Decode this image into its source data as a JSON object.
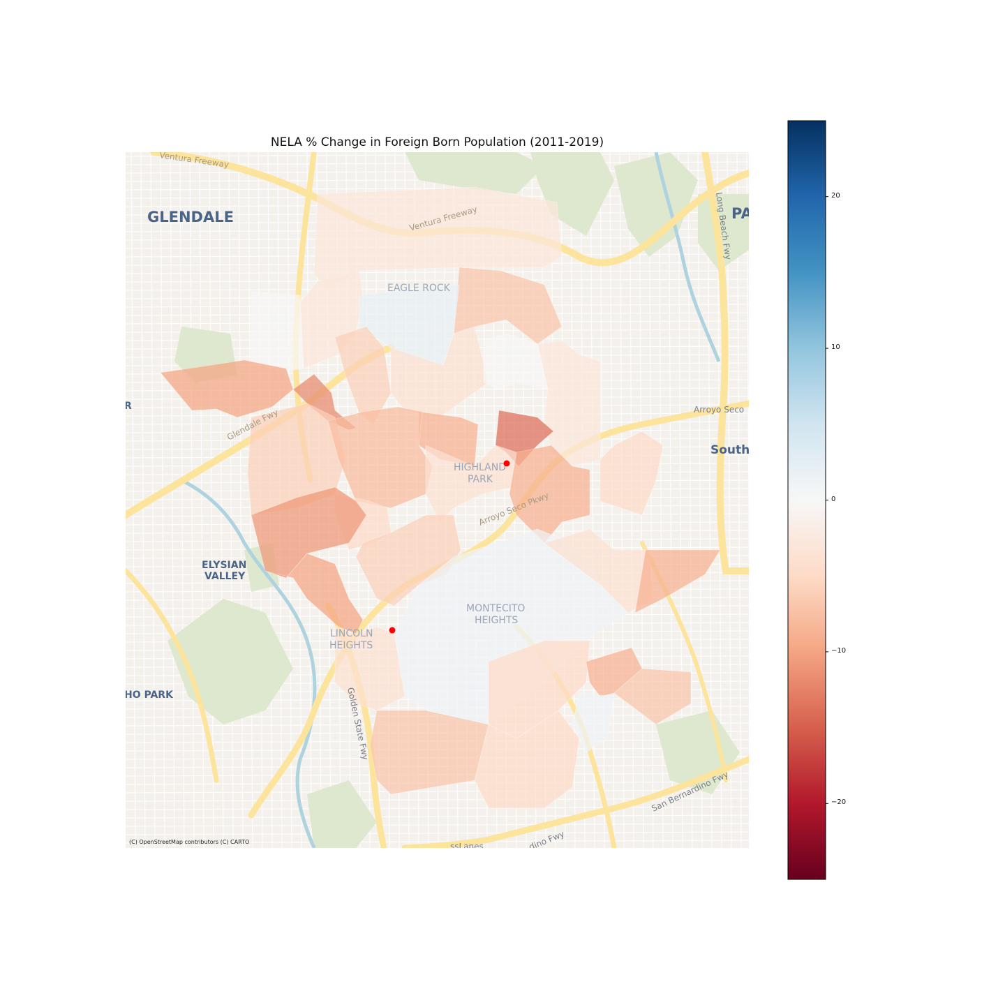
{
  "figure": {
    "title": "NELA % Change in Foreign Born Population (2011-2019)",
    "attribution": "(C) OpenStreetMap contributors (C) CARTO"
  },
  "basemap": {
    "place_labels": [
      {
        "text": "GLENDALE",
        "style": "city"
      },
      {
        "text": "PA",
        "style": "city"
      },
      {
        "text": "South",
        "style": "city"
      },
      {
        "text": "ELYSIAN",
        "style": "district"
      },
      {
        "text": "VALLEY",
        "style": "district"
      },
      {
        "text": "HO PARK",
        "style": "district"
      },
      {
        "text": "R",
        "style": "district"
      },
      {
        "text": "EAGLE ROCK",
        "style": "neighborhood"
      },
      {
        "text": "HIGHLAND",
        "style": "neighborhood"
      },
      {
        "text": "PARK",
        "style": "neighborhood"
      },
      {
        "text": "MONTECITO",
        "style": "neighborhood"
      },
      {
        "text": "HEIGHTS",
        "style": "neighborhood"
      },
      {
        "text": "LINCOLN",
        "style": "neighborhood"
      },
      {
        "text": "HEIGHTS",
        "style": "neighborhood"
      }
    ],
    "road_labels": [
      "Ventura Freeway",
      "Ventura Freeway",
      "Glendale Fwy",
      "Arroyo Seco",
      "Arroyo Seco Pkwy",
      "Long Beach Fwy",
      "Golden State Fwy",
      "San Bernardino Fwy",
      "dino Fwy",
      "ssLanes"
    ],
    "colors": {
      "land": "#f4f1ec",
      "road": "#fce49d",
      "park": "#dde8cf",
      "water": "#aed3df",
      "label": "#4a6488"
    }
  },
  "choropleth": {
    "variable": "% Change in Foreign Born Population",
    "colormap": "RdBu",
    "vmin": -25,
    "vmax": 25,
    "tracts": [
      {
        "id": "eagle-rock-north-band",
        "value": -3
      },
      {
        "id": "eagle-rock-northwest",
        "value": -3
      },
      {
        "id": "eagle-rock-northeast",
        "value": -7
      },
      {
        "id": "eagle-rock-central",
        "value": 2
      },
      {
        "id": "eagle-rock-west",
        "value": 0
      },
      {
        "id": "eagle-rock-south",
        "value": -6
      },
      {
        "id": "colorado-mid",
        "value": -4
      },
      {
        "id": "glassell-west-strip",
        "value": -10
      },
      {
        "id": "east-eagle-rock",
        "value": -3
      },
      {
        "id": "east-of-central",
        "value": 0
      },
      {
        "id": "tract-near-york",
        "value": -5
      },
      {
        "id": "tract-north-highland",
        "value": -9
      },
      {
        "id": "tract-dark-small",
        "value": -12
      },
      {
        "id": "highland-park-west",
        "value": -6
      },
      {
        "id": "highland-park-north",
        "value": -8
      },
      {
        "id": "highland-park-darkest",
        "value": -14
      },
      {
        "id": "highland-park-center",
        "value": -4
      },
      {
        "id": "garvanza-east",
        "value": -9
      },
      {
        "id": "mt-washington-north",
        "value": -5
      },
      {
        "id": "mt-washington-west",
        "value": -11
      },
      {
        "id": "cypress-park-south",
        "value": -10
      },
      {
        "id": "mt-washington-south",
        "value": -6
      },
      {
        "id": "montecito-heights",
        "value": 1
      },
      {
        "id": "hermon-east",
        "value": -4
      },
      {
        "id": "ellis-east",
        "value": -9
      },
      {
        "id": "lincoln-heights-core",
        "value": -4
      },
      {
        "id": "lincoln-heights-south",
        "value": -7
      },
      {
        "id": "el-sereno-west",
        "value": -5
      },
      {
        "id": "el-sereno-center",
        "value": -9
      },
      {
        "id": "el-sereno-east",
        "value": -7
      },
      {
        "id": "el-sereno-small-light",
        "value": 1
      },
      {
        "id": "el-sereno-southwest",
        "value": -5
      }
    ]
  },
  "markers": [
    {
      "id": "highland-park-point",
      "color": "#ff0000"
    },
    {
      "id": "lincoln-heights-point",
      "color": "#ff0000"
    }
  ],
  "colorbar": {
    "ticks": [
      20,
      10,
      0,
      -10,
      -20
    ],
    "tick_labels": [
      "20",
      "10",
      "0",
      "−10",
      "−20"
    ],
    "range": [
      -25,
      25
    ]
  }
}
